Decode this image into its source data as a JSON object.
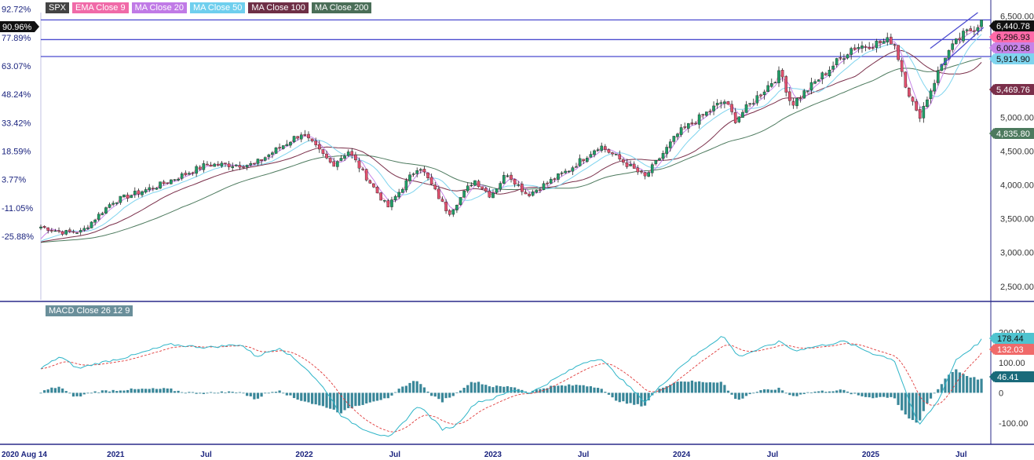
{
  "legend": [
    {
      "label": "SPX",
      "color": "#555555"
    },
    {
      "label": "EMA Close 9",
      "color": "#ff6aa8"
    },
    {
      "label": "MA Close 20",
      "color": "#c784e8"
    },
    {
      "label": "MA Close 50",
      "color": "#7fd4ee"
    },
    {
      "label": "MA Close 100",
      "color": "#7a2f4a"
    },
    {
      "label": "MA Close 200",
      "color": "#4d7a5e"
    }
  ],
  "macd_legend": {
    "label": "MACD Close 26 12 9",
    "color": "#5f8a96"
  },
  "pct_badge": "90.96%",
  "colors": {
    "up": "#1f9e67",
    "down": "#e3506e",
    "wick": "#222222",
    "hline": "#4b4bcf",
    "ema9": "#ff6aa8",
    "ma20": "#c784e8",
    "ma50": "#7fd4ee",
    "ma100": "#7a2f4a",
    "ma200": "#4d7a5e",
    "macd": "#2fb5c8",
    "signal": "#e03a3a",
    "hist": "#3a8799",
    "axis": "#1a237e"
  },
  "chart_data": [
    {
      "type": "candlestick",
      "title": "SPX",
      "x_labels": [
        "2020 Aug 14",
        "2021",
        "Jul",
        "2022",
        "Jul",
        "2023",
        "Jul",
        "2024",
        "Jul",
        "2025",
        "Jul"
      ],
      "x_label_dates": [
        "2020-08-14",
        "2021-01-01",
        "2021-07-01",
        "2022-01-01",
        "2022-07-01",
        "2023-01-01",
        "2023-07-01",
        "2024-01-01",
        "2024-07-01",
        "2025-01-01",
        "2025-07-01"
      ],
      "x_range": [
        "2020-08-14",
        "2025-08-14"
      ],
      "ylim": [
        2300,
        6550
      ],
      "y_ticks": [
        2500,
        3000,
        3500,
        4000,
        4500,
        5000,
        6500
      ],
      "y_tick_labels": [
        "2,500.00",
        "3,000.00",
        "3,500.00",
        "4,000.00",
        "4,500.00",
        "5,000.00",
        "6,500.00"
      ],
      "pct_ticks": [
        "92.72%",
        "77.89%",
        "63.07%",
        "48.24%",
        "33.42%",
        "18.59%",
        "3.77%",
        "-11.05%",
        "-25.88%"
      ],
      "pct_tick_values": [
        6600,
        6180,
        5760,
        5340,
        4920,
        4500,
        4080,
        3660,
        3240
      ],
      "horizontal_lines": [
        6440.78,
        6150,
        5900
      ],
      "value_badges": [
        {
          "label": "6,440.78",
          "series": "close",
          "value": 6440.78
        },
        {
          "label": "6,296.93",
          "series": "EMA Close 9",
          "value": 6296.93
        },
        {
          "label": "6,002.58",
          "series": "MA Close 20",
          "value": 6002.58
        },
        {
          "label": "5,914.90",
          "series": "MA Close 50",
          "value": 5914.9
        },
        {
          "label": "5,469.76",
          "series": "MA Close 100",
          "value": 5469.76
        },
        {
          "label": "4,835.80",
          "series": "MA Close 200",
          "value": 4835.8
        }
      ],
      "close_anchors": [
        [
          "2020-08-14",
          3380
        ],
        [
          "2020-09-25",
          3300
        ],
        [
          "2020-11-01",
          3310
        ],
        [
          "2020-12-31",
          3756
        ],
        [
          "2021-04-01",
          4000
        ],
        [
          "2021-07-01",
          4300
        ],
        [
          "2021-09-30",
          4300
        ],
        [
          "2021-12-31",
          4766
        ],
        [
          "2022-03-01",
          4300
        ],
        [
          "2022-04-01",
          4500
        ],
        [
          "2022-06-16",
          3666
        ],
        [
          "2022-08-16",
          4300
        ],
        [
          "2022-10-12",
          3577
        ],
        [
          "2022-11-30",
          4080
        ],
        [
          "2023-01-01",
          3840
        ],
        [
          "2023-02-02",
          4180
        ],
        [
          "2023-03-13",
          3850
        ],
        [
          "2023-06-01",
          4220
        ],
        [
          "2023-07-31",
          4588
        ],
        [
          "2023-10-27",
          4117
        ],
        [
          "2023-12-31",
          4770
        ],
        [
          "2024-03-28",
          5250
        ],
        [
          "2024-04-19",
          4967
        ],
        [
          "2024-07-16",
          5667
        ],
        [
          "2024-08-05",
          5186
        ],
        [
          "2024-11-30",
          6030
        ],
        [
          "2025-02-19",
          6144
        ],
        [
          "2025-03-13",
          5521
        ],
        [
          "2025-04-08",
          4982
        ],
        [
          "2025-05-30",
          5912
        ],
        [
          "2025-07-01",
          6200
        ],
        [
          "2025-08-14",
          6440.78
        ]
      ],
      "series": [
        {
          "name": "EMA Close 9",
          "last": 6296.93
        },
        {
          "name": "MA Close 20",
          "last": 6002.58
        },
        {
          "name": "MA Close 50",
          "last": 5914.9
        },
        {
          "name": "MA Close 100",
          "last": 5469.76
        },
        {
          "name": "MA Close 200",
          "last": 4835.8
        }
      ]
    },
    {
      "type": "macd",
      "title": "MACD Close 26 12 9",
      "ylim": [
        -160,
        240
      ],
      "y_ticks": [
        200,
        100,
        0,
        -100
      ],
      "y_tick_labels": [
        "200.00",
        "100.00",
        "0",
        "-100.00"
      ],
      "value_badges": [
        {
          "label": "178.44",
          "series": "MACD",
          "value": 178.44
        },
        {
          "label": "132.03",
          "series": "Signal",
          "value": 132.03
        },
        {
          "label": "46.41",
          "series": "Histogram",
          "value": 46.41
        }
      ],
      "macd_anchors": [
        [
          "2020-08-14",
          80
        ],
        [
          "2020-09-20",
          120
        ],
        [
          "2020-10-25",
          80
        ],
        [
          "2020-11-25",
          95
        ],
        [
          "2021-02-01",
          120
        ],
        [
          "2021-04-20",
          160
        ],
        [
          "2021-07-01",
          150
        ],
        [
          "2021-09-05",
          160
        ],
        [
          "2021-10-05",
          120
        ],
        [
          "2021-11-20",
          150
        ],
        [
          "2022-01-10",
          80
        ],
        [
          "2022-02-20",
          0
        ],
        [
          "2022-03-20",
          -80
        ],
        [
          "2022-05-01",
          -120
        ],
        [
          "2022-06-20",
          -150
        ],
        [
          "2022-08-15",
          -40
        ],
        [
          "2022-09-30",
          -120
        ],
        [
          "2022-10-25",
          -110
        ],
        [
          "2022-12-05",
          -30
        ],
        [
          "2023-01-05",
          -20
        ],
        [
          "2023-02-15",
          10
        ],
        [
          "2023-03-20",
          0
        ],
        [
          "2023-06-30",
          100
        ],
        [
          "2023-08-01",
          115
        ],
        [
          "2023-09-20",
          30
        ],
        [
          "2023-10-27",
          -30
        ],
        [
          "2024-01-05",
          90
        ],
        [
          "2024-03-25",
          190
        ],
        [
          "2024-04-25",
          120
        ],
        [
          "2024-07-15",
          170
        ],
        [
          "2024-08-10",
          140
        ],
        [
          "2024-11-15",
          170
        ],
        [
          "2025-01-10",
          130
        ],
        [
          "2025-02-20",
          110
        ],
        [
          "2025-04-08",
          -110
        ],
        [
          "2025-05-15",
          -30
        ],
        [
          "2025-06-20",
          110
        ],
        [
          "2025-08-14",
          178.44
        ]
      ],
      "signal_last": 132.03,
      "histogram_last": 46.41
    }
  ]
}
